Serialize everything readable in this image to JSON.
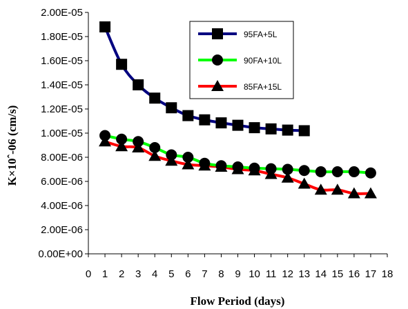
{
  "chart_data": {
    "type": "line",
    "title": "",
    "xlabel": "Flow Period (days)",
    "ylabel": "K×10ˆ-06 (cm/s)",
    "xlim": [
      0,
      18
    ],
    "ylim": [
      0,
      2e-05
    ],
    "x_ticks": [
      0,
      1,
      2,
      3,
      4,
      5,
      6,
      7,
      8,
      9,
      10,
      11,
      12,
      13,
      14,
      15,
      16,
      17,
      18
    ],
    "y_ticks": [
      0,
      2e-06,
      4e-06,
      6e-06,
      8e-06,
      1e-05,
      1.2e-05,
      1.4e-05,
      1.6e-05,
      1.8e-05,
      2e-05
    ],
    "y_tick_labels": [
      "0.00E+00",
      "2.00E-06",
      "4.00E-06",
      "6.00E-06",
      "8.00E-06",
      "1.00E-05",
      "1.20E-05",
      "1.40E-05",
      "1.60E-05",
      "1.80E-05",
      "2.00E-05"
    ],
    "grid": false,
    "legend_position": "top-right",
    "series": [
      {
        "name": "95FA+5L",
        "color": "#000080",
        "marker": "square",
        "x": [
          1,
          2,
          3,
          4,
          5,
          6,
          7,
          8,
          9,
          10,
          11,
          12,
          13
        ],
        "values": [
          1.88e-05,
          1.57e-05,
          1.4e-05,
          1.29e-05,
          1.21e-05,
          1.145e-05,
          1.11e-05,
          1.085e-05,
          1.065e-05,
          1.045e-05,
          1.035e-05,
          1.025e-05,
          1.02e-05
        ]
      },
      {
        "name": "90FA+10L",
        "color": "#00ff00",
        "marker": "circle",
        "x": [
          1,
          2,
          3,
          4,
          5,
          6,
          7,
          8,
          9,
          10,
          11,
          12,
          13,
          14,
          15,
          16,
          17
        ],
        "values": [
          9.8e-06,
          9.5e-06,
          9.3e-06,
          8.8e-06,
          8.2e-06,
          8e-06,
          7.5e-06,
          7.3e-06,
          7.2e-06,
          7.1e-06,
          7.05e-06,
          7e-06,
          6.9e-06,
          6.8e-06,
          6.8e-06,
          6.8e-06,
          6.7e-06
        ]
      },
      {
        "name": "85FA+15L",
        "color": "#ff0000",
        "marker": "triangle",
        "x": [
          1,
          2,
          3,
          4,
          5,
          6,
          7,
          8,
          9,
          10,
          11,
          12,
          13,
          14,
          15,
          16,
          17
        ],
        "values": [
          9.3e-06,
          8.9e-06,
          8.8e-06,
          8.1e-06,
          7.7e-06,
          7.4e-06,
          7.3e-06,
          7.2e-06,
          7e-06,
          6.9e-06,
          6.6e-06,
          6.3e-06,
          5.8e-06,
          5.3e-06,
          5.3e-06,
          5e-06,
          5e-06
        ]
      }
    ]
  }
}
